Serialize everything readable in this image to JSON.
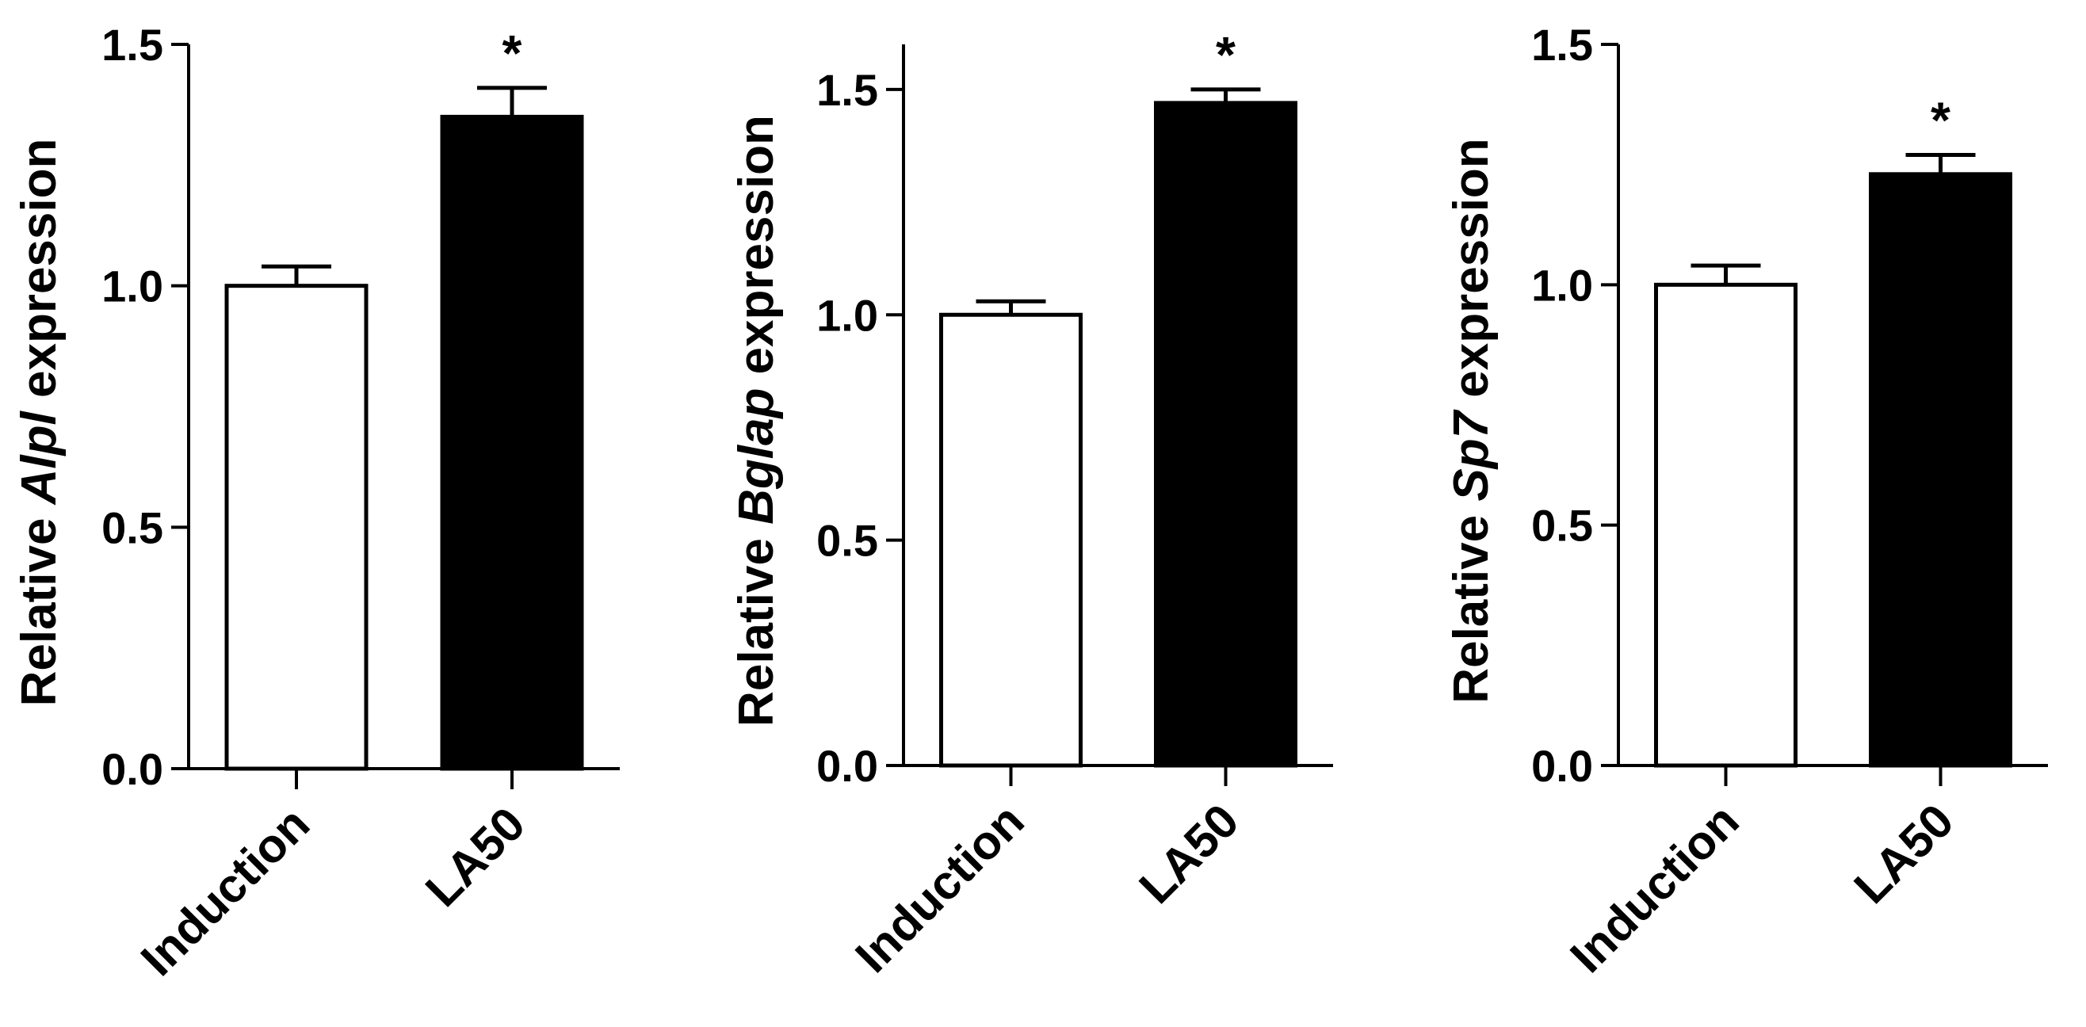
{
  "chart_data": [
    {
      "type": "bar",
      "categories": [
        "Induction",
        "LA50"
      ],
      "values": [
        1.0,
        1.35
      ],
      "errors": [
        0.04,
        0.06
      ],
      "significance": [
        "",
        "*"
      ],
      "bar_colors": [
        "#ffffff",
        "#000000"
      ],
      "ylabel": {
        "prefix": "Relative ",
        "gene": "Alpl",
        "suffix": " expression"
      },
      "ylim": [
        0,
        1.5
      ],
      "yticks": [
        "0.0",
        "0.5",
        "1.0",
        "1.5"
      ],
      "ytick_values": [
        0,
        0.5,
        1.0,
        1.5
      ]
    },
    {
      "type": "bar",
      "categories": [
        "Induction",
        "LA50"
      ],
      "values": [
        1.0,
        1.47
      ],
      "errors": [
        0.03,
        0.03
      ],
      "significance": [
        "",
        "*"
      ],
      "bar_colors": [
        "#ffffff",
        "#000000"
      ],
      "ylabel": {
        "prefix": "Relative ",
        "gene": "Bglap",
        "suffix": " expression"
      },
      "ylim": [
        0,
        1.6
      ],
      "yticks": [
        "0.0",
        "0.5",
        "1.0",
        "1.5"
      ],
      "ytick_values": [
        0,
        0.5,
        1.0,
        1.5
      ]
    },
    {
      "type": "bar",
      "categories": [
        "Induction",
        "LA50"
      ],
      "values": [
        1.0,
        1.23
      ],
      "errors": [
        0.04,
        0.04
      ],
      "significance": [
        "",
        "*"
      ],
      "bar_colors": [
        "#ffffff",
        "#000000"
      ],
      "ylabel": {
        "prefix": "Relative ",
        "gene": "Sp7",
        "suffix": " expression"
      },
      "ylim": [
        0,
        1.5
      ],
      "yticks": [
        "0.0",
        "0.5",
        "1.0",
        "1.5"
      ],
      "ytick_values": [
        0,
        0.5,
        1.0,
        1.5
      ]
    }
  ]
}
